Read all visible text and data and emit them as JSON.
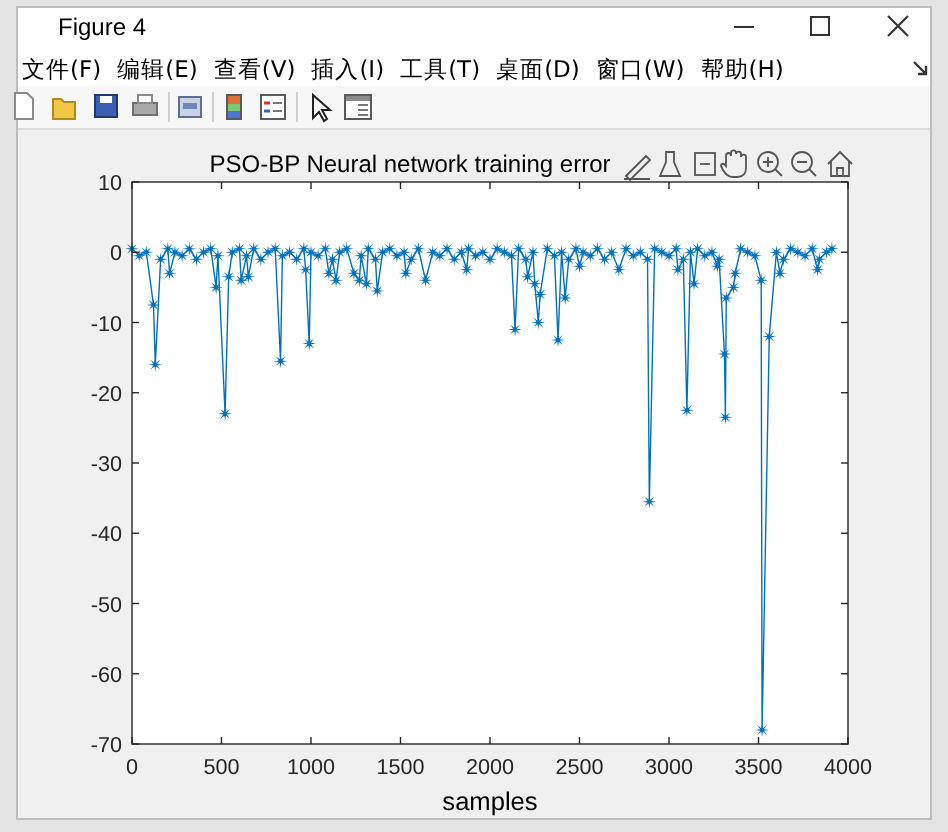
{
  "chart_data": {
    "type": "line",
    "title": "PSO-BP Neural network training error",
    "xlabel": "samples",
    "annotations": [
      "Figure 4",
      "文件(F)",
      "编辑(E)",
      "查看(V)",
      "插入(I)",
      "工具(T)",
      "桌面(D)",
      "窗口(W)",
      "帮助(H)"
    ],
    "x": [
      0,
      40,
      80,
      120,
      130,
      160,
      200,
      210,
      240,
      280,
      320,
      360,
      400,
      440,
      470,
      480,
      520,
      540,
      560,
      600,
      610,
      640,
      650,
      680,
      720,
      760,
      800,
      830,
      840,
      880,
      920,
      960,
      970,
      990,
      1000,
      1040,
      1080,
      1100,
      1120,
      1140,
      1160,
      1200,
      1240,
      1270,
      1280,
      1310,
      1320,
      1360,
      1370,
      1400,
      1440,
      1480,
      1520,
      1530,
      1560,
      1600,
      1640,
      1680,
      1720,
      1760,
      1800,
      1840,
      1870,
      1880,
      1920,
      1960,
      2000,
      2040,
      2080,
      2120,
      2140,
      2160,
      2200,
      2210,
      2240,
      2250,
      2270,
      2280,
      2320,
      2360,
      2380,
      2400,
      2420,
      2440,
      2480,
      2500,
      2520,
      2560,
      2600,
      2640,
      2680,
      2720,
      2760,
      2800,
      2840,
      2880,
      2890,
      2920,
      2960,
      3000,
      3040,
      3050,
      3080,
      3100,
      3120,
      3140,
      3160,
      3200,
      3240,
      3270,
      3280,
      3310,
      3315,
      3320,
      3360,
      3370,
      3400,
      3440,
      3480,
      3515,
      3520,
      3560,
      3600,
      3620,
      3640,
      3680,
      3720,
      3760,
      3800,
      3830,
      3840,
      3880,
      3910
    ],
    "values": [
      0.5,
      -0.5,
      0,
      -7.5,
      -16,
      -1,
      0.5,
      -3,
      0,
      -0.5,
      0.5,
      -1,
      0,
      0.5,
      -5,
      -0.5,
      -23,
      -3.5,
      0,
      0.5,
      -4,
      -0.5,
      -3.5,
      0.5,
      -1,
      0,
      0.5,
      -15.5,
      -0.5,
      0,
      -1,
      0.5,
      -2.5,
      -13,
      0,
      -0.5,
      0.5,
      -3,
      -1,
      -4,
      0,
      0.5,
      -3,
      -4,
      -0.5,
      -4.5,
      0.5,
      -1,
      -5.5,
      0,
      0.5,
      -0.5,
      0,
      -3,
      -1,
      0.5,
      -4,
      0,
      -0.5,
      0.5,
      -1,
      0,
      -2.5,
      0.5,
      -0.5,
      0,
      -1,
      0.5,
      0,
      -0.5,
      -11,
      0.5,
      -1,
      -3.5,
      0,
      -4.5,
      -10,
      -6,
      0.5,
      -0.5,
      -12.5,
      0,
      -6.5,
      -1,
      0.5,
      -2,
      0,
      -0.5,
      0.5,
      -1,
      0,
      -2.5,
      0.5,
      -0.5,
      0,
      -1,
      -35.5,
      0.5,
      0,
      -0.5,
      0.5,
      -2.5,
      -1,
      -22.5,
      0,
      -4.5,
      0.5,
      -0.5,
      0,
      -2,
      -1,
      -14.5,
      -23.5,
      -6.5,
      -5,
      -3,
      0.5,
      0,
      -0.5,
      -4,
      -68,
      -12,
      0,
      -3,
      -1,
      0.5,
      0,
      -0.5,
      0.5,
      -2.5,
      -1,
      0,
      0.5
    ],
    "color": "#0072bd",
    "marker": "star",
    "line_style": "solid",
    "xlim": [
      0,
      4000
    ],
    "ylim": [
      -70,
      10
    ],
    "xticks": [
      0,
      500,
      1000,
      1500,
      2000,
      2500,
      3000,
      3500,
      4000
    ],
    "yticks": [
      -70,
      -60,
      -50,
      -40,
      -30,
      -20,
      -10,
      0,
      10
    ]
  }
}
